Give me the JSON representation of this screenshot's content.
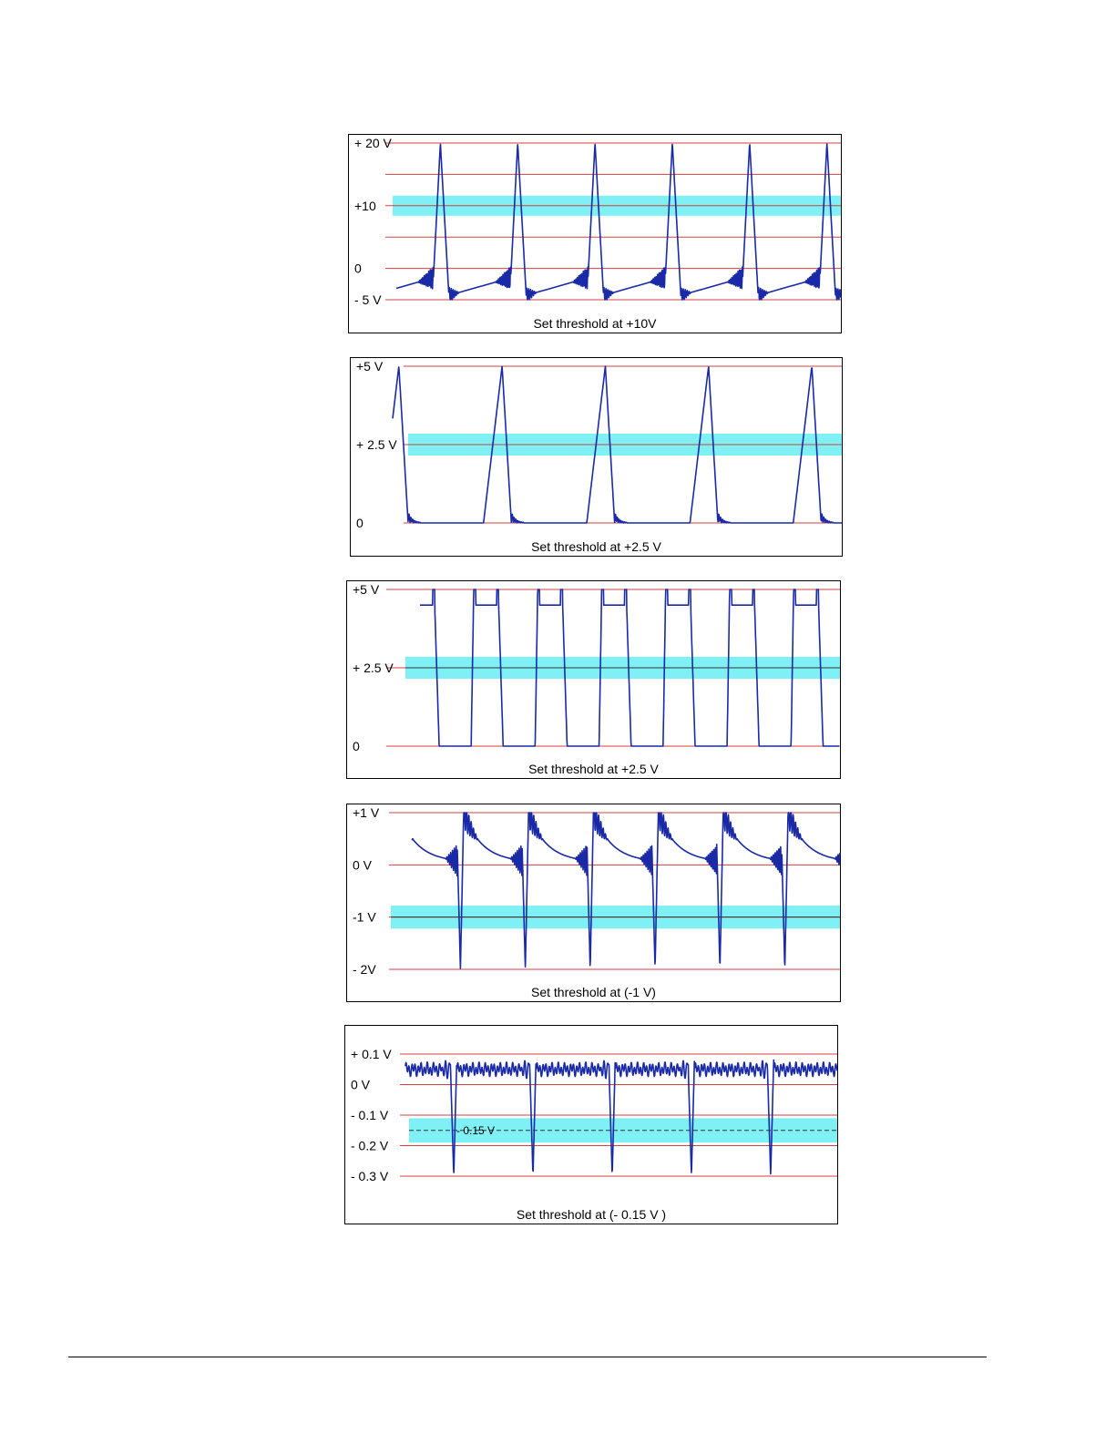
{
  "chart_data": [
    {
      "type": "line",
      "caption": "Set threshold at +10V",
      "grid_labels": [
        {
          "label": "+ 20 V",
          "value": 20
        },
        {
          "label": "",
          "value": 15
        },
        {
          "label": "+10",
          "value": 10
        },
        {
          "label": "",
          "value": 5
        },
        {
          "label": "0",
          "value": 0
        },
        {
          "label": "- 5 V",
          "value": -5
        }
      ],
      "ylim": [
        -5,
        20
      ],
      "threshold": 10,
      "threshold_band": [
        8.4,
        11.6
      ],
      "threshold_line": false,
      "waveform": "sawtooth-ringing",
      "period": 1,
      "phase": 0.52,
      "x_range": [
        0,
        5.75
      ],
      "series": [
        {
          "levels": {
            "low": -4.3,
            "high": 20,
            "baseline_start": -4.3,
            "baseline_end": -1.5,
            "ring_amplitude": 1.3
          }
        }
      ]
    },
    {
      "type": "line",
      "caption": "Set threshold at +2.5 V",
      "grid_labels": [
        {
          "label": "+5 V",
          "value": 5
        },
        {
          "label": "+ 2.5 V",
          "value": 2.5
        },
        {
          "label": "0",
          "value": 0
        }
      ],
      "ylim": [
        0,
        5
      ],
      "threshold": 2.5,
      "threshold_band": [
        2.15,
        2.85
      ],
      "threshold_line": false,
      "waveform": "ramp-drop",
      "period": 1,
      "phase": 0.12,
      "x_range": [
        0,
        4.35
      ],
      "series": [
        {
          "levels": {
            "low": 0,
            "high": 5,
            "ring_amplitude": 0.35
          }
        }
      ]
    },
    {
      "type": "line",
      "caption": "Set threshold at +2.5 V",
      "grid_labels": [
        {
          "label": "+5 V",
          "value": 5
        },
        {
          "label": "+ 2.5 V",
          "value": 2.5
        },
        {
          "label": "0",
          "value": 0
        }
      ],
      "ylim": [
        0,
        5
      ],
      "threshold": 2.5,
      "threshold_band": [
        2.15,
        2.85
      ],
      "threshold_line": true,
      "waveform": "square",
      "period": 1,
      "phase": 0.2,
      "x_range": [
        0,
        6.55
      ],
      "series": [
        {
          "levels": {
            "low": 0,
            "high": 4.5,
            "overshoot": 5
          }
        }
      ]
    },
    {
      "type": "line",
      "caption": "Set threshold at  (-1 V)",
      "grid_labels": [
        {
          "label": "+1 V",
          "value": 1
        },
        {
          "label": "0 V",
          "value": 0
        },
        {
          "label": "-1 V",
          "value": -1
        },
        {
          "label": "- 2V",
          "value": -2
        }
      ],
      "ylim": [
        -2,
        1
      ],
      "threshold": -1,
      "threshold_band": [
        -1.22,
        -0.78
      ],
      "threshold_line": true,
      "waveform": "negative-spike-ringing",
      "period": 1,
      "phase": 0.3,
      "x_range": [
        0,
        6.6
      ],
      "series": [
        {
          "levels": {
            "low": -2,
            "high": 1,
            "decay_end": 0.05,
            "ring_amplitude": 0.3
          }
        }
      ]
    },
    {
      "type": "line",
      "caption": "Set threshold at  (- 0.15 V )",
      "grid_labels": [
        {
          "label": "+ 0.1 V",
          "value": 0.1
        },
        {
          "label": "0 V",
          "value": 0
        },
        {
          "label": "- 0.1 V",
          "value": -0.1
        },
        {
          "label": "- 0.2 V",
          "value": -0.2
        },
        {
          "label": "- 0.3 V",
          "value": -0.3
        }
      ],
      "ylim": [
        -0.3,
        0.1
      ],
      "threshold": -0.15,
      "threshold_band": [
        -0.19,
        -0.11
      ],
      "threshold_line": true,
      "threshold_label": "- 0.15 V",
      "waveform": "negative-spike-noise",
      "period": 1,
      "phase": 0.43,
      "x_range": [
        0,
        5.45
      ],
      "series": [
        {
          "levels": {
            "low": -0.3,
            "high": 0.1,
            "baseline": 0.05,
            "noise": 0.015
          }
        }
      ]
    }
  ],
  "colors": {
    "signal": "#1a2aa6",
    "grid": "#d04040",
    "threshold_band": "#7ff0f4",
    "threshold_line": "#333333"
  }
}
